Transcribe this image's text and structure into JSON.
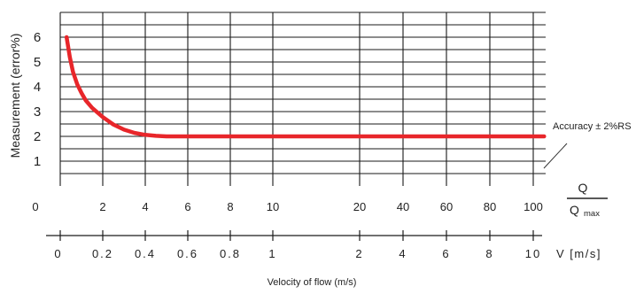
{
  "chart_data": {
    "type": "line",
    "ylabel": "Measurement (error%)",
    "xlabel": "Velocity of flow (m/s)",
    "ylim": [
      0,
      6
    ],
    "y_ticks": [
      "1",
      "2",
      "3",
      "4",
      "5",
      "6"
    ],
    "ratio_axis": {
      "ticks": [
        "0",
        "2",
        "4",
        "6",
        "8",
        "10",
        "20",
        "40",
        "60",
        "80",
        "100"
      ],
      "label_numerator": "Q",
      "label_denominator": "Q",
      "label_denominator_sub": "max"
    },
    "velocity_axis": {
      "ticks": [
        "0",
        "0.2",
        "0.4",
        "0.6",
        "0.8",
        "1",
        "2",
        "4",
        "6",
        "8",
        "10"
      ],
      "label": "V [m/s]"
    },
    "series": [
      {
        "x": [
          0.3,
          0.45,
          0.6,
          0.8,
          1.0,
          1.2,
          1.5,
          2.0,
          2.5,
          3.0,
          3.5,
          4.0,
          4.5,
          5.0,
          6,
          8,
          10,
          20,
          40,
          60,
          80,
          100,
          105
        ],
        "values": [
          6.0,
          5.2,
          4.6,
          4.1,
          3.75,
          3.45,
          3.15,
          2.78,
          2.48,
          2.27,
          2.14,
          2.06,
          2.02,
          2.0,
          2.0,
          2.0,
          2.0,
          2.0,
          2.0,
          2.0,
          2.0,
          2.0,
          2.0
        ]
      }
    ],
    "annotation": "Accuracy ± 2%RS",
    "grid": true,
    "colors": {
      "curve": "#e8262a",
      "grid": "#1a1a1a"
    }
  }
}
